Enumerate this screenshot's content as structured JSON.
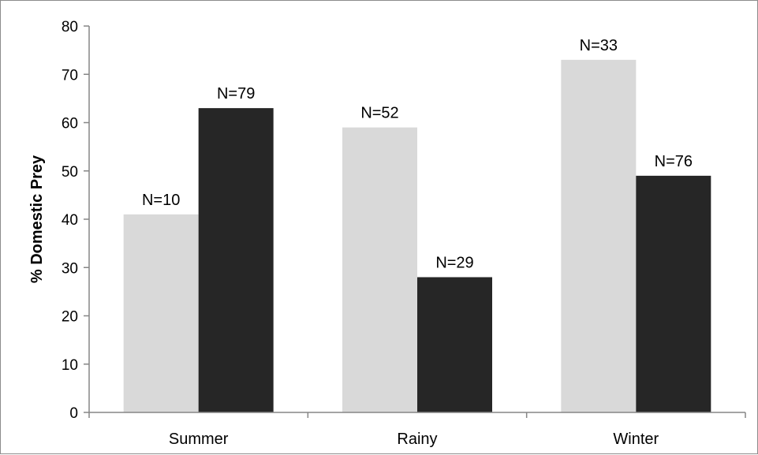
{
  "chart_data": {
    "type": "bar",
    "title": "",
    "xlabel": "",
    "ylabel": "% Domestic Prey",
    "categories": [
      "Summer",
      "Rainy",
      "Winter"
    ],
    "ylim": [
      0,
      80
    ],
    "yticks": [
      0,
      10,
      20,
      30,
      40,
      50,
      60,
      70,
      80
    ],
    "grid": false,
    "legend": "none",
    "series": [
      {
        "color": "#d9d9d9",
        "values": [
          41,
          59,
          73
        ],
        "labels": [
          "N=10",
          "N=52",
          "N=33"
        ]
      },
      {
        "color": "#262626",
        "values": [
          63,
          28,
          49
        ],
        "labels": [
          "N=79",
          "N=29",
          "N=76"
        ]
      }
    ]
  }
}
